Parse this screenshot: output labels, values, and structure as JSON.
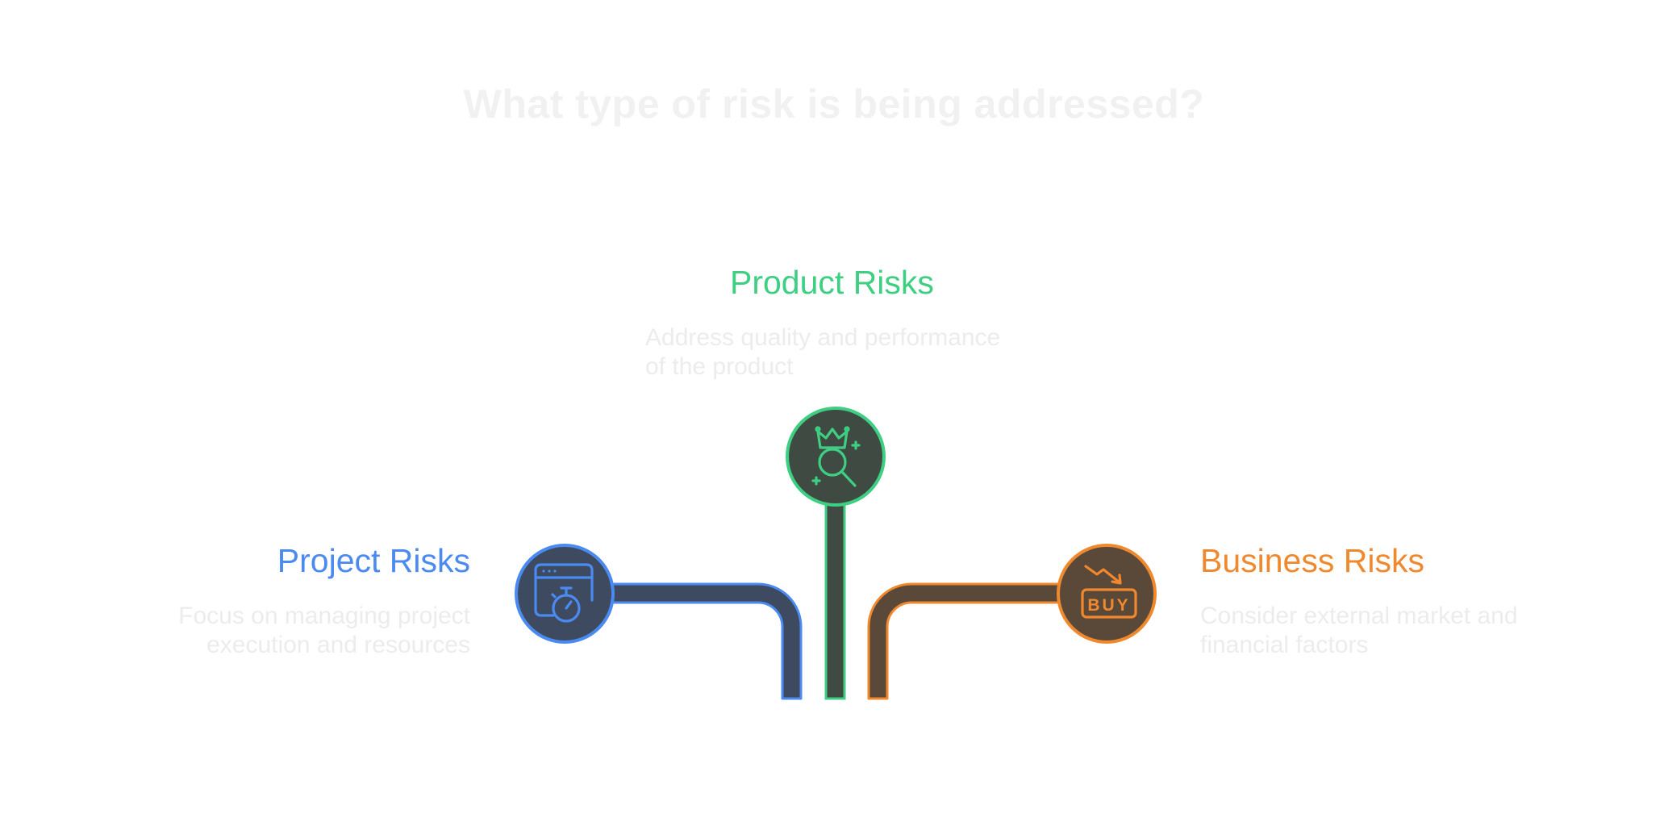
{
  "title": "What type of risk is being addressed?",
  "branches": {
    "product": {
      "title": "Product Risks",
      "description": "Address quality and performance of the product",
      "icon": "crown-magnifier-icon",
      "color": "#3ecf82",
      "fill": "#3e4a42"
    },
    "project": {
      "title": "Project Risks",
      "description": "Focus on managing project execution and resources",
      "icon": "browser-stopwatch-icon",
      "color": "#4a8af1",
      "fill": "#3d4a60"
    },
    "business": {
      "title": "Business Risks",
      "description": "Consider external market and financial factors",
      "icon": "buy-trend-down-icon",
      "color": "#f0892e",
      "fill": "#5a4838",
      "icon_text": "BUY"
    }
  }
}
